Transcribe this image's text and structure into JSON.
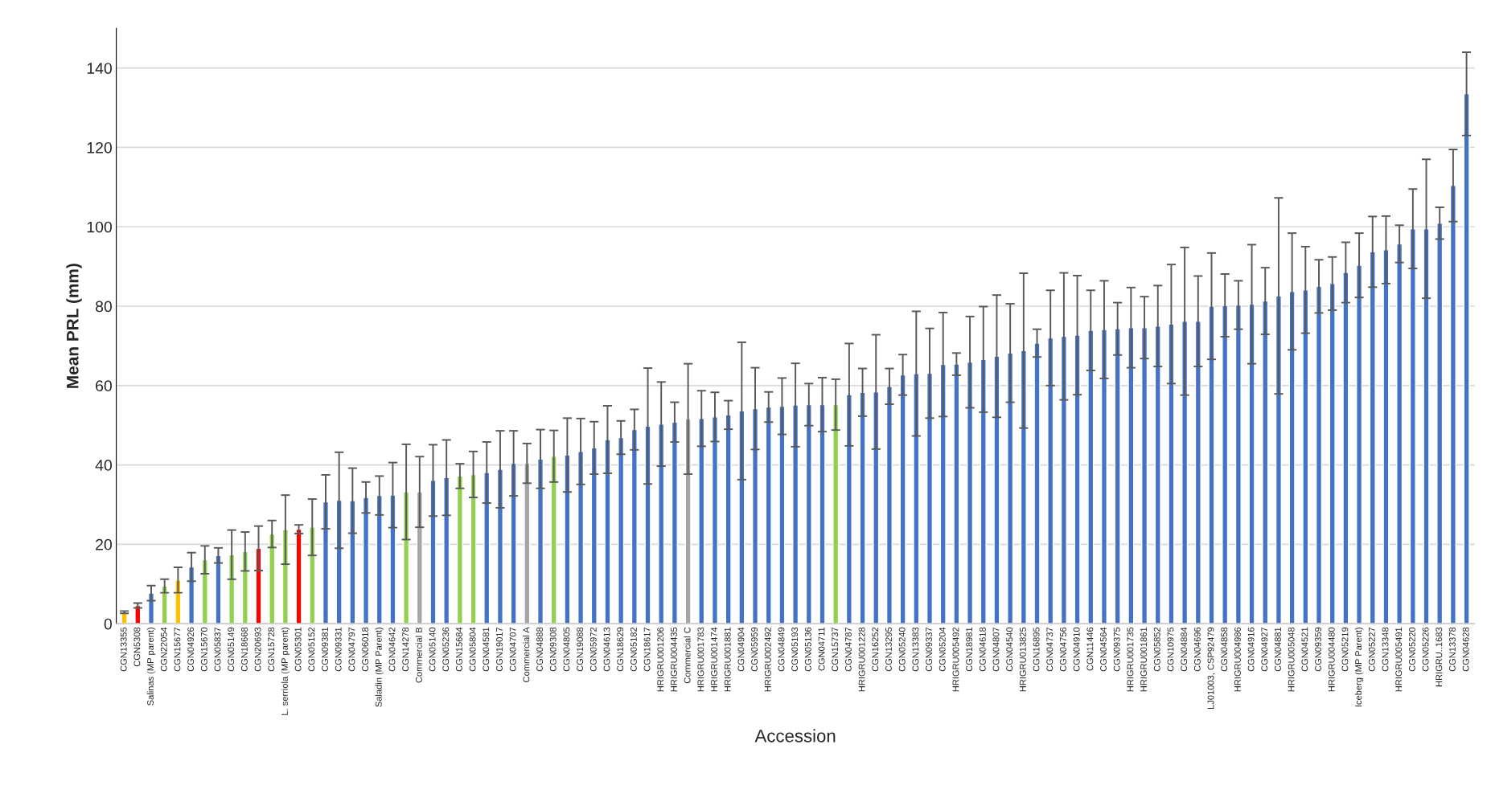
{
  "chart_data": {
    "type": "bar",
    "xlabel": "Accession",
    "ylabel": "Mean PRL (mm)",
    "categories": [
      "CGN13355",
      "CGN5308",
      "Salinas (MP parent)",
      "CGN22054",
      "CGN15677",
      "CGN04926",
      "CGN15670",
      "CGN05837",
      "CGN05149",
      "CGN18668",
      "CGN20693",
      "CGN15728",
      "L. serriola (MP parent)",
      "CGN05301",
      "CGN05152",
      "CGN09381",
      "CGN09331",
      "CGN04797",
      "CGN06018",
      "Saladin (MP Parent)",
      "CGN04642",
      "CGN14278",
      "Commercial B",
      "CGN05140",
      "CGN05236",
      "CGN15684",
      "CGN05804",
      "CGN04581",
      "CGN19017",
      "CGN04707",
      "Commercial A",
      "CGN04888",
      "CGN09308",
      "CGN04805",
      "CGN19088",
      "CGN05972",
      "CGN04613",
      "CGN18629",
      "CGN05182",
      "CGN18617",
      "HRIGRU001206",
      "HRIGRU004435",
      "Commercial C",
      "HRIGRU001783",
      "HRIGRU001474",
      "HRIGRU001881",
      "CGN04904",
      "CGN05959",
      "HRIGRU002492",
      "CGN04849",
      "CGN05193",
      "CGN05136",
      "CGN04711",
      "CGN15737",
      "CGN04787",
      "HRIGRU001228",
      "CGN16252",
      "CGN13295",
      "CGN05240",
      "CGN13383",
      "CGN09337",
      "CGN05204",
      "HRIGRU005492",
      "CGN18981",
      "CGN04618",
      "CGN04807",
      "CGN04540",
      "HRIGRU013825",
      "CGN16895",
      "CGN04737",
      "CGN04756",
      "CGN04910",
      "CGN11446",
      "CGN04564",
      "CGN09375",
      "HRIGRU001735",
      "HRIGRU001861",
      "CGN05852",
      "CGN10975",
      "CGN04884",
      "CGN04696",
      "LJ01003, CSP92479",
      "CGN04858",
      "HRIGRU004986",
      "CGN04916",
      "CGN04927",
      "CGN04881",
      "HRIGRU005048",
      "CGN04521",
      "CGN09359",
      "HRIGRU004480",
      "CGN05219",
      "Iceberg (MP Parent)",
      "CGN05227",
      "CGN13348",
      "HRIGRU005491",
      "CGN05220",
      "CGN05226",
      "HRIGRU..1683",
      "CGN13378",
      "CGN04628"
    ],
    "values": [
      2.9,
      4.6,
      7.7,
      9.5,
      11.0,
      14.3,
      16.1,
      17.2,
      17.4,
      18.2,
      19.0,
      22.6,
      23.7,
      23.8,
      24.3,
      30.7,
      31.1,
      31.0,
      31.8,
      32.3,
      32.4,
      33.2,
      33.2,
      36.1,
      36.8,
      37.2,
      37.6,
      38.1,
      38.9,
      40.4,
      40.4,
      41.5,
      42.2,
      42.5,
      43.4,
      44.3,
      46.4,
      46.9,
      48.9,
      49.8,
      50.3,
      50.8,
      51.6,
      51.7,
      52.1,
      52.6,
      53.6,
      54.2,
      54.6,
      54.8,
      55.1,
      55.2,
      55.2,
      55.2,
      57.7,
      58.3,
      58.4,
      59.8,
      62.7,
      63.0,
      63.1,
      65.3,
      65.4,
      65.9,
      66.6,
      67.4,
      68.2,
      68.8,
      70.7,
      72.0,
      72.4,
      72.7,
      73.9,
      74.1,
      74.3,
      74.6,
      74.6,
      75.0,
      75.5,
      76.2,
      76.2,
      80.0,
      80.2,
      80.3,
      80.5,
      81.3,
      82.6,
      83.7,
      84.1,
      85.0,
      85.7,
      88.5,
      90.3,
      93.7,
      94.2,
      95.7,
      99.5,
      99.5,
      100.9,
      110.4,
      133.5
    ],
    "errors": [
      0.3,
      0.6,
      1.9,
      1.7,
      3.2,
      3.6,
      3.5,
      1.9,
      6.2,
      4.9,
      5.6,
      3.4,
      8.7,
      1.1,
      7.1,
      6.8,
      12.1,
      8.2,
      3.9,
      4.9,
      8.2,
      12.0,
      8.9,
      9.0,
      9.5,
      3.1,
      5.8,
      7.7,
      9.7,
      8.2,
      5.0,
      7.4,
      6.5,
      9.3,
      8.3,
      6.6,
      8.5,
      4.2,
      5.1,
      14.6,
      10.6,
      5.0,
      13.9,
      7.0,
      6.2,
      3.6,
      17.3,
      10.3,
      3.8,
      7.1,
      10.5,
      5.3,
      6.8,
      6.4,
      12.9,
      6.0,
      14.4,
      4.5,
      5.1,
      15.7,
      11.3,
      13.1,
      2.8,
      11.5,
      13.3,
      15.4,
      12.4,
      19.5,
      3.5,
      12.0,
      16.0,
      15.0,
      10.1,
      12.3,
      6.6,
      10.1,
      7.8,
      10.2,
      15.0,
      18.6,
      11.4,
      13.4,
      7.9,
      6.1,
      15.0,
      8.4,
      24.7,
      14.7,
      10.9,
      6.7,
      6.7,
      7.6,
      8.1,
      8.9,
      8.5,
      4.7,
      10.0,
      17.5,
      4.0,
      9.1,
      10.5
    ],
    "colors": [
      "#ffc000",
      "#ff0000",
      "#4472c4",
      "#92d050",
      "#ffc000",
      "#4472c4",
      "#92d050",
      "#4472c4",
      "#92d050",
      "#92d050",
      "#ff0000",
      "#92d050",
      "#92d050",
      "#ff0000",
      "#92d050",
      "#4472c4",
      "#4472c4",
      "#4472c4",
      "#4472c4",
      "#4472c4",
      "#4472c4",
      "#92d050",
      "#a5a5a5",
      "#4472c4",
      "#4472c4",
      "#92d050",
      "#92d050",
      "#4472c4",
      "#4472c4",
      "#4472c4",
      "#a5a5a5",
      "#4472c4",
      "#92d050",
      "#4472c4",
      "#4472c4",
      "#4472c4",
      "#4472c4",
      "#4472c4",
      "#4472c4",
      "#4472c4",
      "#4472c4",
      "#4472c4",
      "#a5a5a5",
      "#4472c4",
      "#4472c4",
      "#4472c4",
      "#4472c4",
      "#4472c4",
      "#4472c4",
      "#4472c4",
      "#4472c4",
      "#4472c4",
      "#4472c4",
      "#92d050",
      "#4472c4",
      "#4472c4",
      "#4472c4",
      "#4472c4",
      "#4472c4",
      "#4472c4",
      "#4472c4",
      "#4472c4",
      "#4472c4",
      "#4472c4",
      "#4472c4",
      "#4472c4",
      "#4472c4",
      "#4472c4",
      "#4472c4",
      "#4472c4",
      "#4472c4",
      "#4472c4",
      "#4472c4",
      "#4472c4",
      "#4472c4",
      "#4472c4",
      "#4472c4",
      "#4472c4",
      "#4472c4",
      "#4472c4",
      "#4472c4",
      "#4472c4",
      "#4472c4",
      "#4472c4",
      "#4472c4",
      "#4472c4",
      "#4472c4",
      "#4472c4",
      "#4472c4",
      "#4472c4",
      "#4472c4",
      "#4472c4",
      "#4472c4",
      "#4472c4",
      "#4472c4",
      "#4472c4",
      "#4472c4",
      "#4472c4",
      "#4472c4",
      "#4472c4",
      "#4472c4"
    ],
    "ylim": [
      0,
      150
    ],
    "yticks": [
      0,
      20,
      40,
      60,
      80,
      100,
      120,
      140
    ],
    "grid": "y"
  }
}
